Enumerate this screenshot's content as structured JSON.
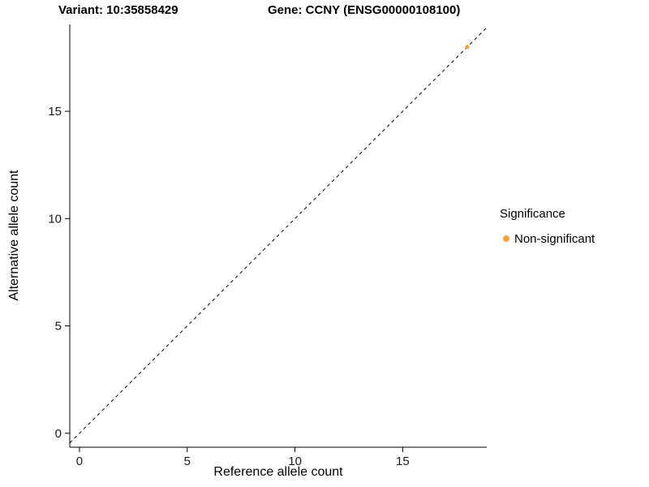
{
  "chart_data": {
    "type": "scatter",
    "title_left": "Variant: 10:35858429",
    "title_right": "Gene: CCNY (ENSG00000108100)",
    "xlabel": "Reference allele count",
    "ylabel": "Alternative allele count",
    "xlim": [
      -0.45,
      18.9
    ],
    "ylim": [
      -0.65,
      19.05
    ],
    "x_ticks": [
      0,
      5,
      10,
      15
    ],
    "y_ticks": [
      0,
      5,
      10,
      15
    ],
    "grid": false,
    "axis_color": "#000000",
    "identity_line": {
      "equation": "y = x",
      "style": "dashed",
      "color": "#000000"
    },
    "series": [
      {
        "name": "Non-significant",
        "color": "#F9A03F",
        "points": [
          {
            "x": 18,
            "y": 18
          }
        ]
      }
    ],
    "legend": {
      "title": "Significance",
      "position": "right",
      "entries": [
        {
          "label": "Non-significant",
          "color": "#F9A03F"
        }
      ]
    }
  }
}
